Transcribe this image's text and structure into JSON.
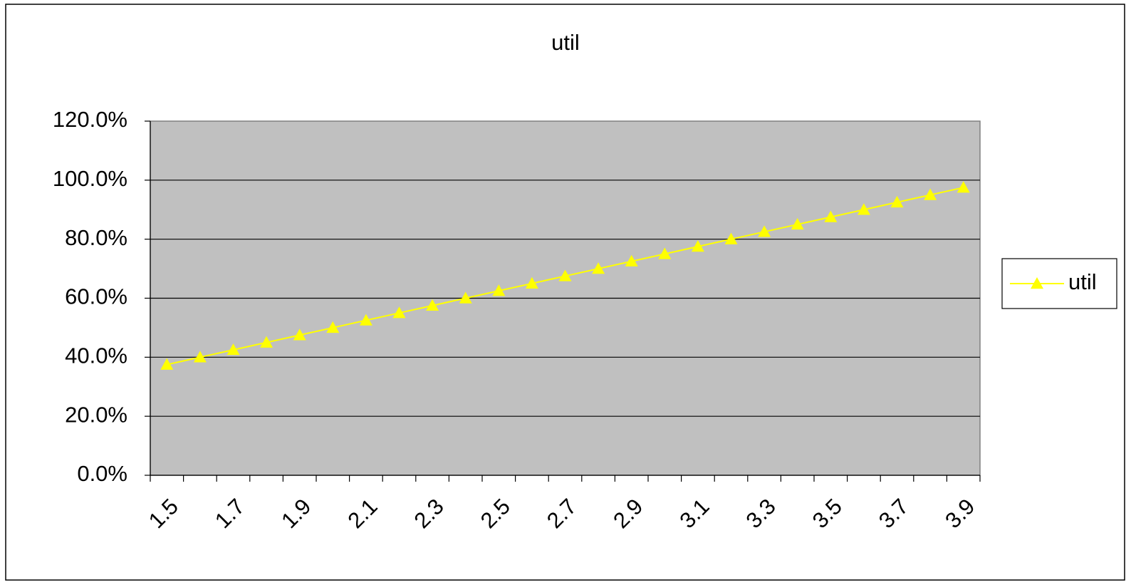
{
  "chart_data": {
    "type": "line",
    "title": "util",
    "categories": [
      "1.5",
      null,
      "1.7",
      null,
      "1.9",
      null,
      "2.1",
      null,
      "2.3",
      null,
      "2.5",
      null,
      "2.7",
      null,
      "2.9",
      null,
      "3.1",
      null,
      "3.3",
      null,
      "3.5",
      null,
      "3.7",
      null,
      "3.9"
    ],
    "series": [
      {
        "name": "util",
        "color": "#ffff00",
        "marker": "triangle",
        "values": [
          37.5,
          40,
          42.5,
          45,
          47.5,
          50,
          52.5,
          55,
          57.5,
          60,
          62.5,
          65,
          67.5,
          70,
          72.5,
          75,
          77.5,
          80,
          82.5,
          85,
          87.5,
          90,
          92.5,
          95,
          97.5
        ]
      }
    ],
    "ylim": [
      0,
      120
    ],
    "yticks": [
      {
        "value": 0,
        "label": "0.0%"
      },
      {
        "value": 20,
        "label": "20.0%"
      },
      {
        "value": 40,
        "label": "40.0%"
      },
      {
        "value": 60,
        "label": "60.0%"
      },
      {
        "value": 80,
        "label": "80.0%"
      },
      {
        "value": 100,
        "label": "100.0%"
      },
      {
        "value": 120,
        "label": "120.0%"
      }
    ],
    "grid": true,
    "plot_background": "#c0c0c0",
    "legend": "right"
  }
}
